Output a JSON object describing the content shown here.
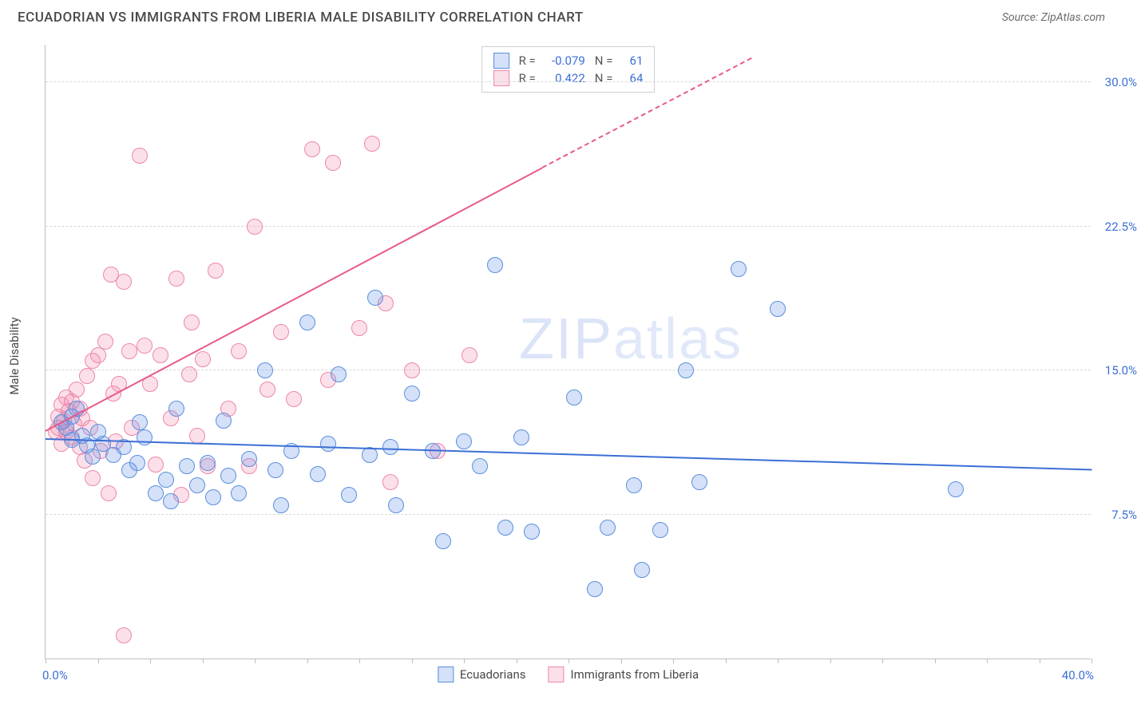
{
  "header": {
    "title": "ECUADORIAN VS IMMIGRANTS FROM LIBERIA MALE DISABILITY CORRELATION CHART",
    "source": "Source: ZipAtlas.com"
  },
  "watermark": {
    "bold": "ZIP",
    "light": "atlas"
  },
  "chart": {
    "type": "scatter",
    "ylabel": "Male Disability",
    "xlim": [
      0,
      40
    ],
    "ylim": [
      0,
      32
    ],
    "x_origin_label": "0.0%",
    "x_end_label": "40.0%",
    "xtick_positions": [
      0,
      2,
      4,
      6,
      8,
      10,
      12,
      14,
      16,
      18,
      20,
      22,
      24,
      26,
      28,
      30,
      32,
      34,
      36,
      38,
      40
    ],
    "y_gridlines": [
      7.5,
      15.0,
      22.5,
      30.0
    ],
    "ytick_labels": [
      "7.5%",
      "15.0%",
      "22.5%",
      "30.0%"
    ],
    "grid_color": "#d8d8d8",
    "axis_color": "#bfbfbf",
    "background_color": "#ffffff",
    "label_color": "#3b6fd6",
    "marker_radius": 10,
    "marker_border_width": 1.4,
    "marker_fill_opacity": 0.22,
    "series": {
      "ecuadorians": {
        "label": "Ecuadorians",
        "color": "#3b6fd6",
        "fill": "rgba(99,148,230,0.28)",
        "border": "#5b8fde",
        "R": "-0.079",
        "N": "61",
        "trend": {
          "x1": 0,
          "y1": 11.4,
          "x2": 40,
          "y2": 9.8,
          "style": "solid"
        },
        "points": [
          [
            0.6,
            12.3
          ],
          [
            0.8,
            12.0
          ],
          [
            1.0,
            11.4
          ],
          [
            1.0,
            12.6
          ],
          [
            1.2,
            13.0
          ],
          [
            1.4,
            11.6
          ],
          [
            1.6,
            11.1
          ],
          [
            1.8,
            10.5
          ],
          [
            2.0,
            11.8
          ],
          [
            2.2,
            11.2
          ],
          [
            2.6,
            10.6
          ],
          [
            3.0,
            11.0
          ],
          [
            3.2,
            9.8
          ],
          [
            3.5,
            10.2
          ],
          [
            3.6,
            12.3
          ],
          [
            3.8,
            11.5
          ],
          [
            4.2,
            8.6
          ],
          [
            4.6,
            9.3
          ],
          [
            4.8,
            8.2
          ],
          [
            5.0,
            13.0
          ],
          [
            5.4,
            10.0
          ],
          [
            5.8,
            9.0
          ],
          [
            6.2,
            10.2
          ],
          [
            6.4,
            8.4
          ],
          [
            6.8,
            12.4
          ],
          [
            7.0,
            9.5
          ],
          [
            7.4,
            8.6
          ],
          [
            7.8,
            10.4
          ],
          [
            8.4,
            15.0
          ],
          [
            8.8,
            9.8
          ],
          [
            9.4,
            10.8
          ],
          [
            10.0,
            17.5
          ],
          [
            10.4,
            9.6
          ],
          [
            10.8,
            11.2
          ],
          [
            11.2,
            14.8
          ],
          [
            11.6,
            8.5
          ],
          [
            12.4,
            10.6
          ],
          [
            12.6,
            18.8
          ],
          [
            13.2,
            11.0
          ],
          [
            13.4,
            8.0
          ],
          [
            14.0,
            13.8
          ],
          [
            14.8,
            10.8
          ],
          [
            15.2,
            6.1
          ],
          [
            16.0,
            11.3
          ],
          [
            17.2,
            20.5
          ],
          [
            17.6,
            6.8
          ],
          [
            18.2,
            11.5
          ],
          [
            18.6,
            6.6
          ],
          [
            20.2,
            13.6
          ],
          [
            21.0,
            3.6
          ],
          [
            21.5,
            6.8
          ],
          [
            22.5,
            9.0
          ],
          [
            22.8,
            4.6
          ],
          [
            23.5,
            6.7
          ],
          [
            24.5,
            15.0
          ],
          [
            25.0,
            9.2
          ],
          [
            26.5,
            20.3
          ],
          [
            28.0,
            18.2
          ],
          [
            34.8,
            8.8
          ],
          [
            16.6,
            10.0
          ],
          [
            9.0,
            8.0
          ]
        ]
      },
      "liberia": {
        "label": "Immigrants from Liberia",
        "color": "#e75a8a",
        "fill": "rgba(244,143,177,0.28)",
        "border": "#ec87aa",
        "R": "0.422",
        "N": "64",
        "trend_solid": {
          "x1": 0,
          "y1": 11.8,
          "x2": 19,
          "y2": 25.5,
          "style": "solid"
        },
        "trend_dashed": {
          "x1": 19,
          "y1": 25.5,
          "x2": 27,
          "y2": 31.2,
          "style": "dashed"
        },
        "points": [
          [
            0.4,
            11.8
          ],
          [
            0.5,
            12.6
          ],
          [
            0.5,
            12.0
          ],
          [
            0.6,
            11.2
          ],
          [
            0.6,
            13.2
          ],
          [
            0.7,
            12.4
          ],
          [
            0.8,
            11.8
          ],
          [
            0.8,
            13.6
          ],
          [
            0.9,
            12.9
          ],
          [
            1.0,
            11.5
          ],
          [
            1.0,
            13.4
          ],
          [
            1.1,
            12.2
          ],
          [
            1.2,
            14.0
          ],
          [
            1.3,
            11.0
          ],
          [
            1.3,
            13.0
          ],
          [
            1.4,
            12.5
          ],
          [
            1.5,
            10.3
          ],
          [
            1.6,
            14.7
          ],
          [
            1.7,
            12.0
          ],
          [
            1.8,
            15.5
          ],
          [
            1.8,
            9.4
          ],
          [
            2.0,
            15.8
          ],
          [
            2.1,
            10.8
          ],
          [
            2.3,
            16.5
          ],
          [
            2.4,
            8.6
          ],
          [
            2.5,
            20.0
          ],
          [
            2.6,
            13.8
          ],
          [
            2.7,
            11.3
          ],
          [
            2.8,
            14.3
          ],
          [
            3.0,
            19.6
          ],
          [
            3.0,
            1.2
          ],
          [
            3.2,
            16.0
          ],
          [
            3.3,
            12.0
          ],
          [
            3.6,
            26.2
          ],
          [
            3.8,
            16.3
          ],
          [
            4.0,
            14.3
          ],
          [
            4.2,
            10.1
          ],
          [
            4.4,
            15.8
          ],
          [
            4.8,
            12.5
          ],
          [
            5.0,
            19.8
          ],
          [
            5.2,
            8.5
          ],
          [
            5.5,
            14.8
          ],
          [
            5.8,
            11.6
          ],
          [
            6.0,
            15.6
          ],
          [
            6.2,
            10.0
          ],
          [
            6.5,
            20.2
          ],
          [
            7.0,
            13.0
          ],
          [
            7.4,
            16.0
          ],
          [
            7.8,
            10.0
          ],
          [
            8.0,
            22.5
          ],
          [
            8.5,
            14.0
          ],
          [
            9.0,
            17.0
          ],
          [
            9.5,
            13.5
          ],
          [
            10.2,
            26.5
          ],
          [
            10.8,
            14.5
          ],
          [
            11.0,
            25.8
          ],
          [
            12.0,
            17.2
          ],
          [
            12.5,
            26.8
          ],
          [
            13.2,
            9.2
          ],
          [
            14.0,
            15.0
          ],
          [
            15.0,
            10.8
          ],
          [
            16.2,
            15.8
          ],
          [
            13.0,
            18.5
          ],
          [
            5.6,
            17.5
          ]
        ]
      }
    }
  }
}
